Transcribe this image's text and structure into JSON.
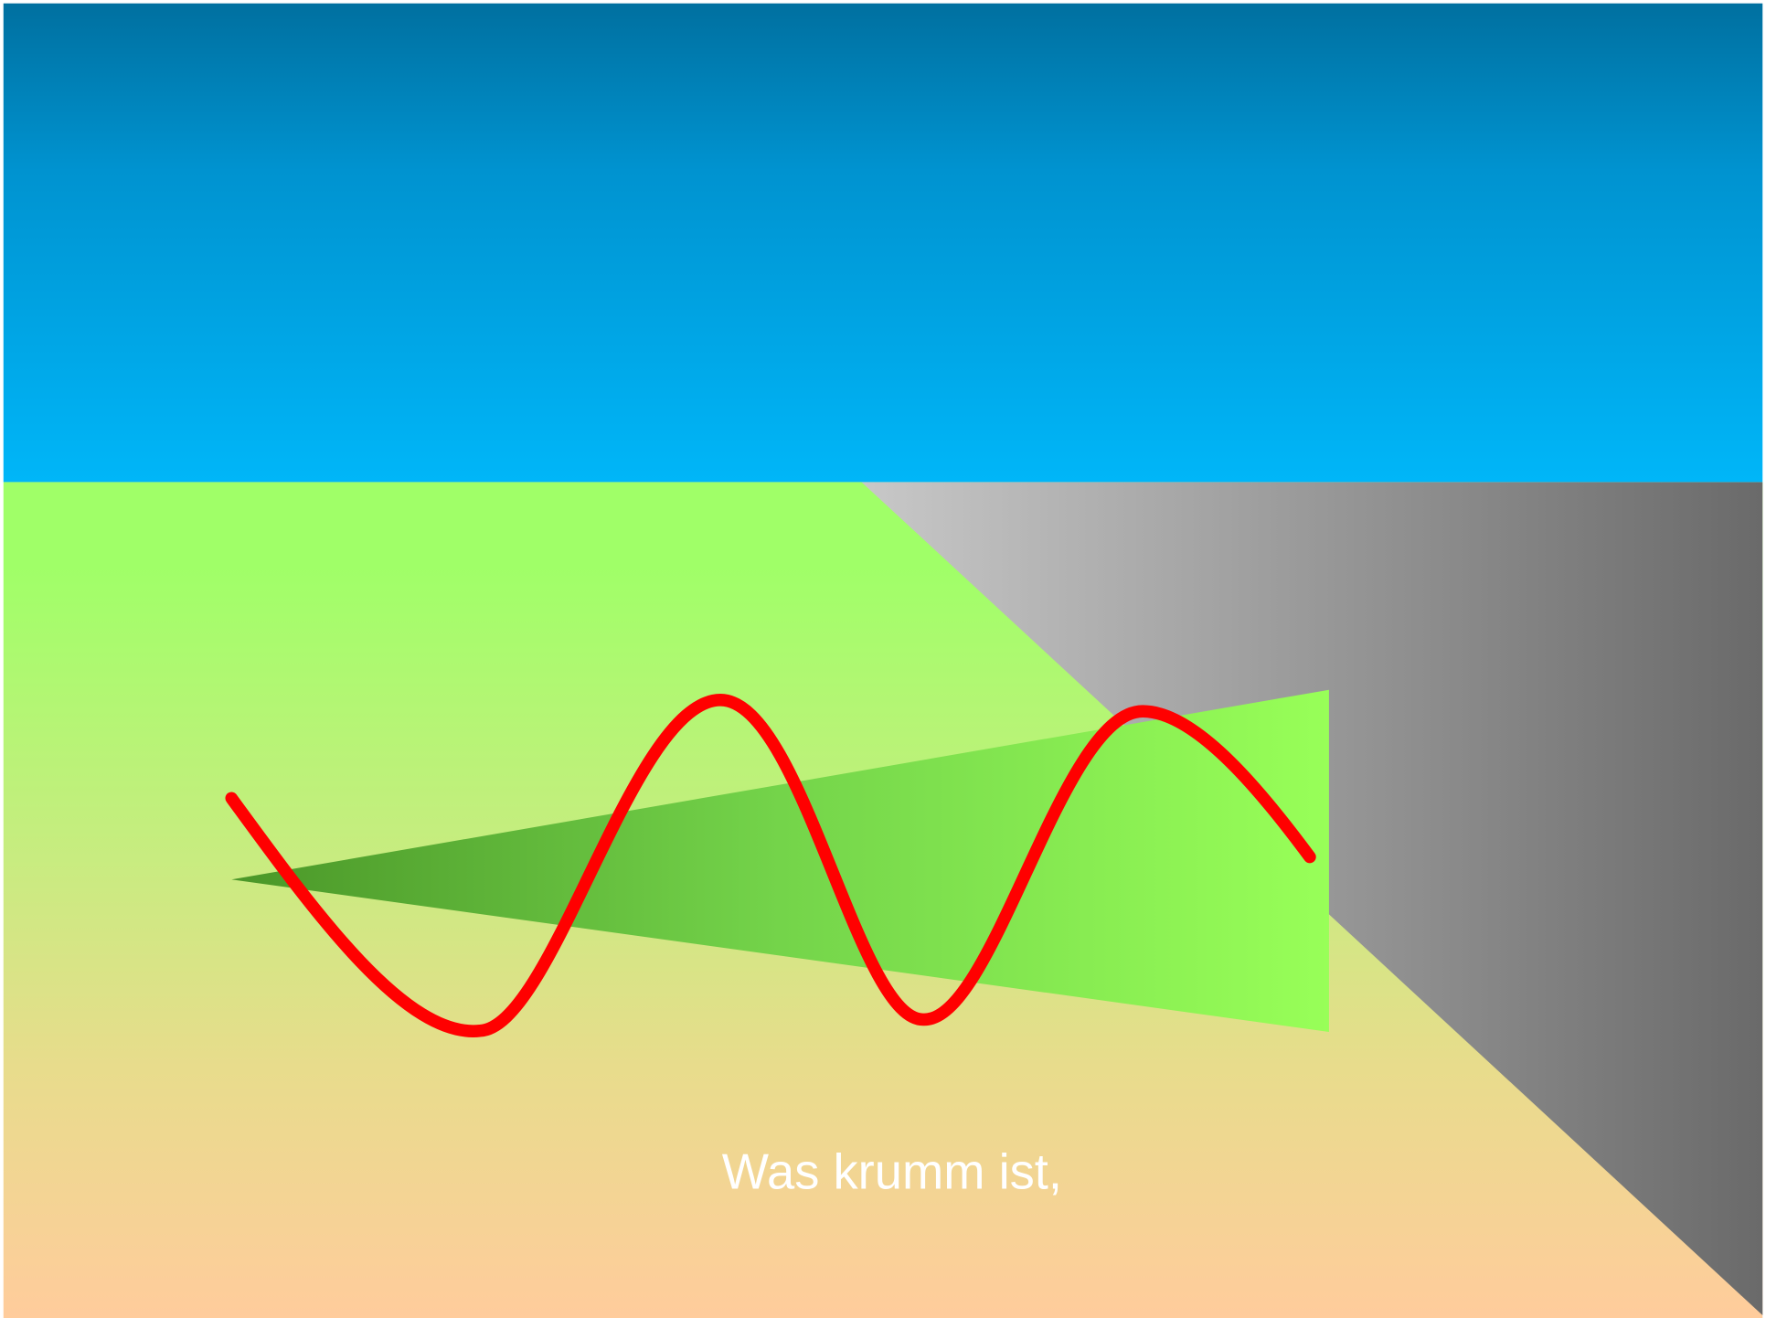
{
  "caption": "Was krumm ist,"
}
